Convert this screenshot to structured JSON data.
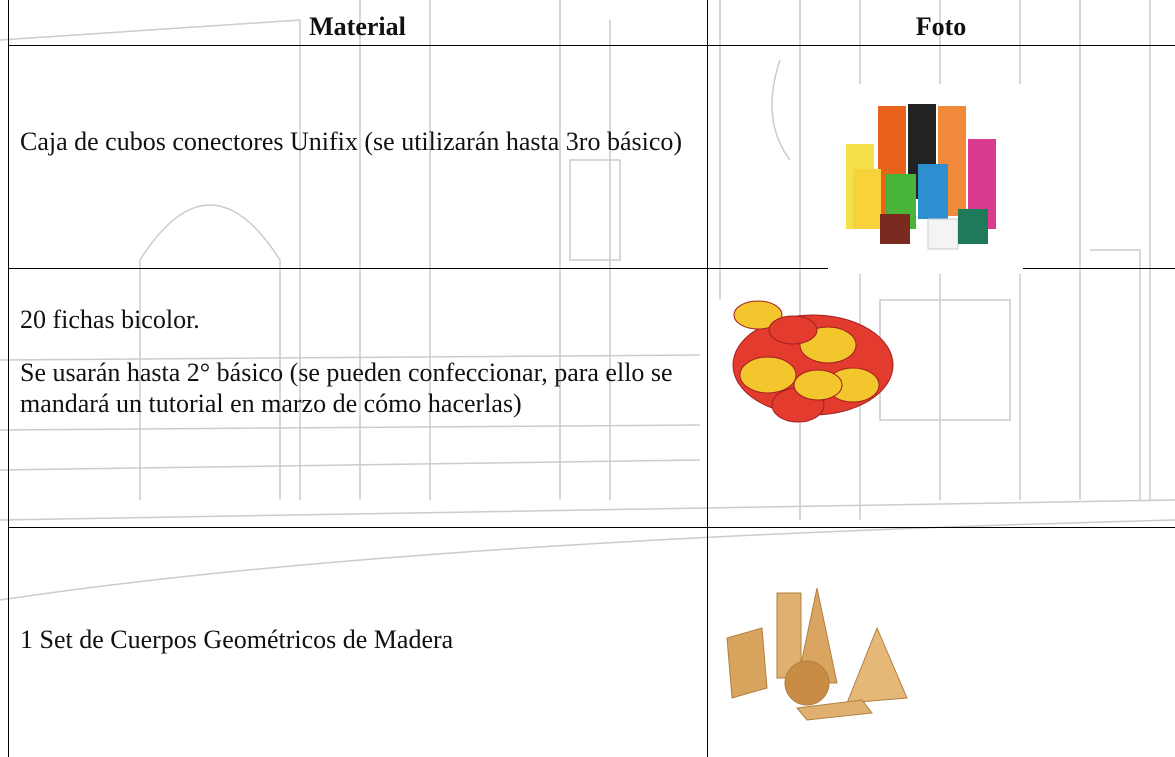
{
  "table": {
    "header": [
      "Material",
      "Foto"
    ],
    "rows": [
      [
        "Caja de cubos conectores Unifix (se utilizarán hasta 3ro básico)"
      ],
      [
        "20 fichas bicolor.",
        "Se usarán hasta 2° básico (se pueden confeccionar, para ello se mandará un tutorial en marzo de cómo hacerlas)"
      ],
      [
        "1 Set de Cuerpos Geométricos de Madera"
      ]
    ]
  }
}
